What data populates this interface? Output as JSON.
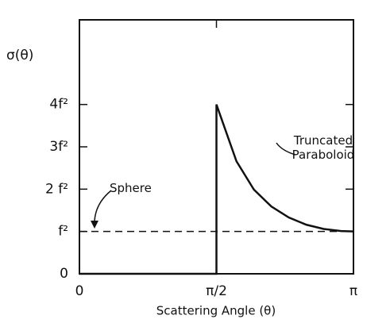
{
  "chart_data": {
    "type": "line",
    "xlabel": "Scattering Angle  (θ)",
    "ylabel": "σ(θ)",
    "x": [
      0,
      1.5708,
      1.5708,
      1.8,
      2.0,
      2.2,
      2.4,
      2.6,
      2.8,
      3.0,
      3.1416
    ],
    "series": [
      {
        "name": "Sphere",
        "color": "#111111",
        "dashed": true,
        "values": [
          1,
          1,
          1,
          1,
          1,
          1,
          1,
          1,
          1,
          1,
          1
        ]
      },
      {
        "name": "Truncated Paraboloid",
        "color": "#111111",
        "dashed": false,
        "values": [
          0,
          0,
          4,
          2.66,
          1.99,
          1.59,
          1.33,
          1.16,
          1.06,
          1.01,
          1
        ]
      }
    ],
    "xlim": [
      0,
      3.1416
    ],
    "ylim": [
      0,
      6
    ],
    "xticks": [
      0,
      {
        "value": 1.5708,
        "label": "π/2"
      },
      {
        "value": 3.1416,
        "label": "π"
      }
    ],
    "yticks": [
      0,
      {
        "value": 1,
        "label": "f²"
      },
      {
        "value": 2,
        "label": "2 f²"
      },
      {
        "value": 3,
        "label": "3f²"
      },
      {
        "value": 4,
        "label": "4f²"
      }
    ],
    "legend": false,
    "grid": false
  }
}
